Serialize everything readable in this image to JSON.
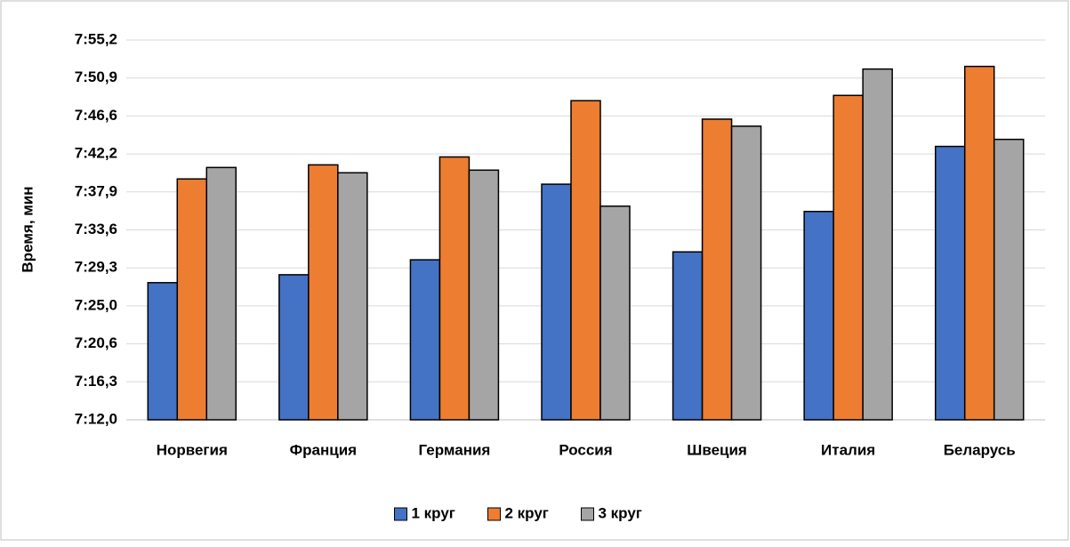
{
  "chart_data": {
    "type": "bar",
    "y_label": "Время, мин",
    "categories": [
      "Норвегия",
      "Франция",
      "Германия",
      "Россия",
      "Швеция",
      "Италия",
      "Беларусь"
    ],
    "series": [
      {
        "name": "1 круг",
        "color": "#4472c4",
        "values": [
          447.6,
          448.5,
          450.2,
          458.8,
          451.1,
          455.7,
          463.1
        ]
      },
      {
        "name": "2 круг",
        "color": "#ed7d31",
        "values": [
          459.4,
          461.0,
          461.9,
          468.3,
          466.2,
          468.9,
          472.2
        ]
      },
      {
        "name": "3 круг",
        "color": "#a5a5a5",
        "values": [
          460.7,
          460.1,
          460.4,
          456.3,
          465.4,
          471.9,
          463.9
        ]
      }
    ],
    "ylim": [
      432,
      475.2
    ],
    "yticks": [
      {
        "value": 432,
        "label": "7:12,0"
      },
      {
        "value": 436.32,
        "label": "7:16,3"
      },
      {
        "value": 440.64,
        "label": "7:20,6"
      },
      {
        "value": 444.96,
        "label": "7:25,0"
      },
      {
        "value": 449.28,
        "label": "7:29,3"
      },
      {
        "value": 453.6,
        "label": "7:33,6"
      },
      {
        "value": 457.92,
        "label": "7:37,9"
      },
      {
        "value": 462.24,
        "label": "7:42,2"
      },
      {
        "value": 466.56,
        "label": "7:46,6"
      },
      {
        "value": 470.88,
        "label": "7:50,9"
      },
      {
        "value": 475.2,
        "label": "7:55,2"
      }
    ],
    "grid": true,
    "legend": "bottom"
  }
}
